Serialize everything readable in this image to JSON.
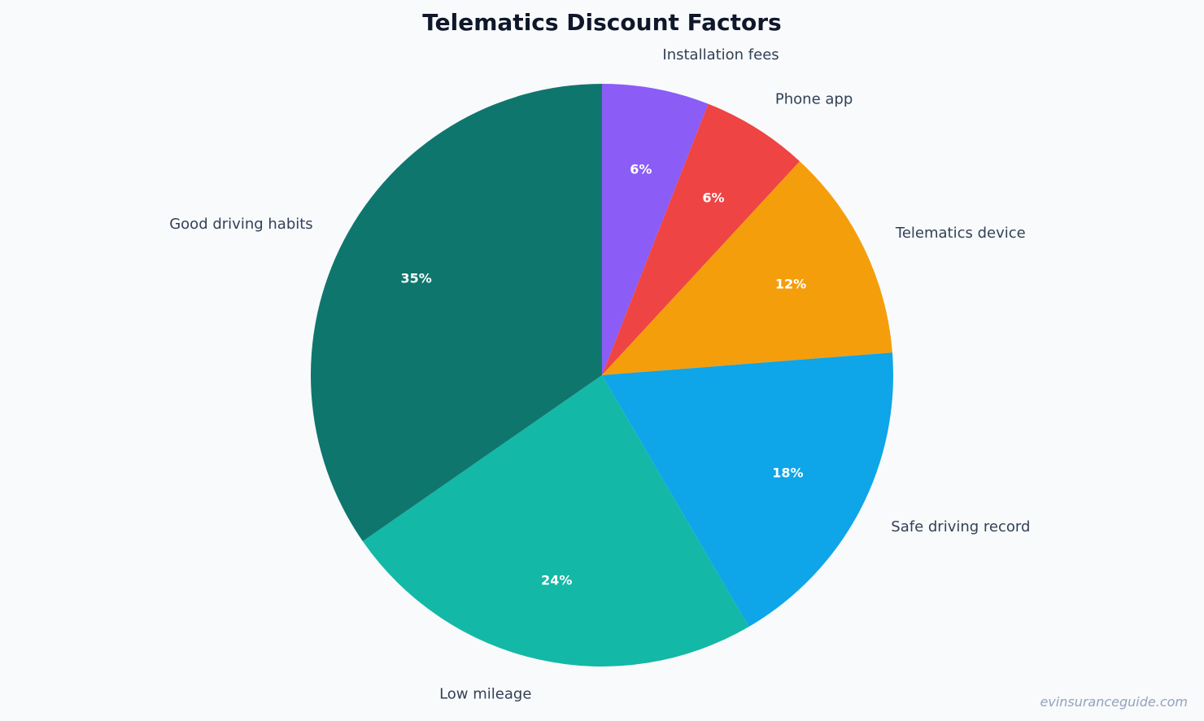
{
  "chart_data": {
    "type": "pie",
    "title": "Telematics Discount Factors",
    "start": "top",
    "direction": "clockwise",
    "slices": [
      {
        "label": "Installation fees",
        "value": 6,
        "value_label": "6%",
        "color": "#8b5cf6"
      },
      {
        "label": "Phone app",
        "value": 6,
        "value_label": "6%",
        "color": "#ef4444"
      },
      {
        "label": "Telematics device",
        "value": 12,
        "value_label": "12%",
        "color": "#f59e0b"
      },
      {
        "label": "Safe driving record",
        "value": 18,
        "value_label": "18%",
        "color": "#0ea5e9"
      },
      {
        "label": "Low mileage",
        "value": 24,
        "value_label": "24%",
        "color": "#14b8a6"
      },
      {
        "label": "Good driving habits",
        "value": 35,
        "value_label": "35%",
        "color": "#0f766e"
      }
    ]
  },
  "watermark": "evinsuranceguide.com"
}
